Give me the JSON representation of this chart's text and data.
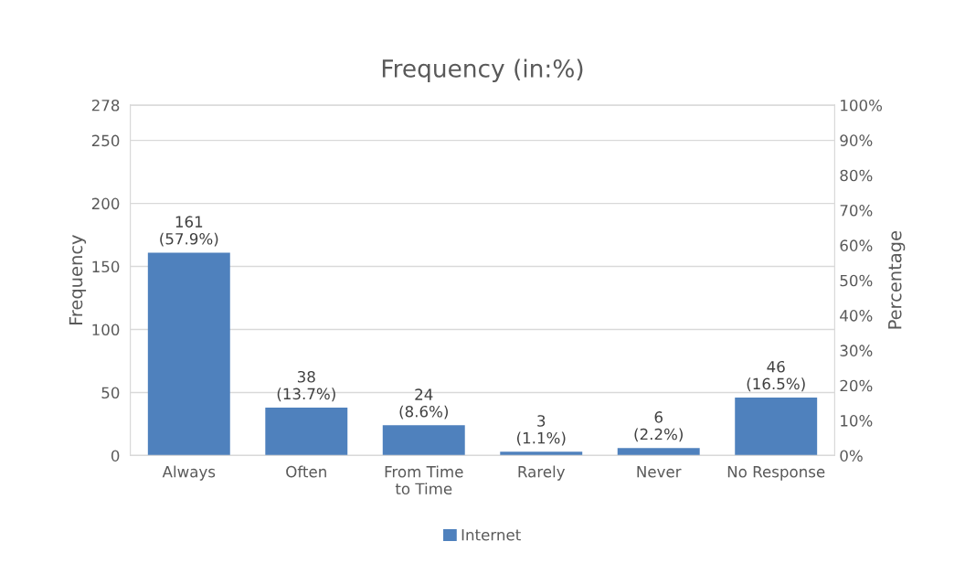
{
  "chart_data": {
    "type": "bar",
    "title": "Frequency (in:%)",
    "ylabel": "Frequency",
    "y2label": "Percentage",
    "categories": [
      "Always",
      "Often",
      "From Time\nto Time",
      "Rarely",
      "Never",
      "No Response"
    ],
    "series": [
      {
        "name": "Internet",
        "color": "#4f81bd",
        "values": [
          161,
          38,
          24,
          3,
          6,
          46
        ],
        "value_labels": [
          "161\n(57.9%)",
          "38\n(13.7%)",
          "24\n(8.6%)",
          "3\n(1.1%)",
          "6\n(2.2%)",
          "46\n(16.5%)"
        ]
      }
    ],
    "ylim": [
      0,
      278
    ],
    "yticks": [
      0,
      50,
      100,
      150,
      200,
      250,
      278
    ],
    "y2lim": [
      0,
      100
    ],
    "y2ticks": [
      {
        "value": 0,
        "label": "0%"
      },
      {
        "value": 10,
        "label": "10%"
      },
      {
        "value": 20,
        "label": "20%"
      },
      {
        "value": 30,
        "label": "30%"
      },
      {
        "value": 40,
        "label": "40%"
      },
      {
        "value": 50,
        "label": "50%"
      },
      {
        "value": 60,
        "label": "60%"
      },
      {
        "value": 70,
        "label": "70%"
      },
      {
        "value": 80,
        "label": "80%"
      },
      {
        "value": 90,
        "label": "90%"
      },
      {
        "value": 100,
        "label": "100%"
      }
    ],
    "grid": "y",
    "legend": "bottom"
  }
}
